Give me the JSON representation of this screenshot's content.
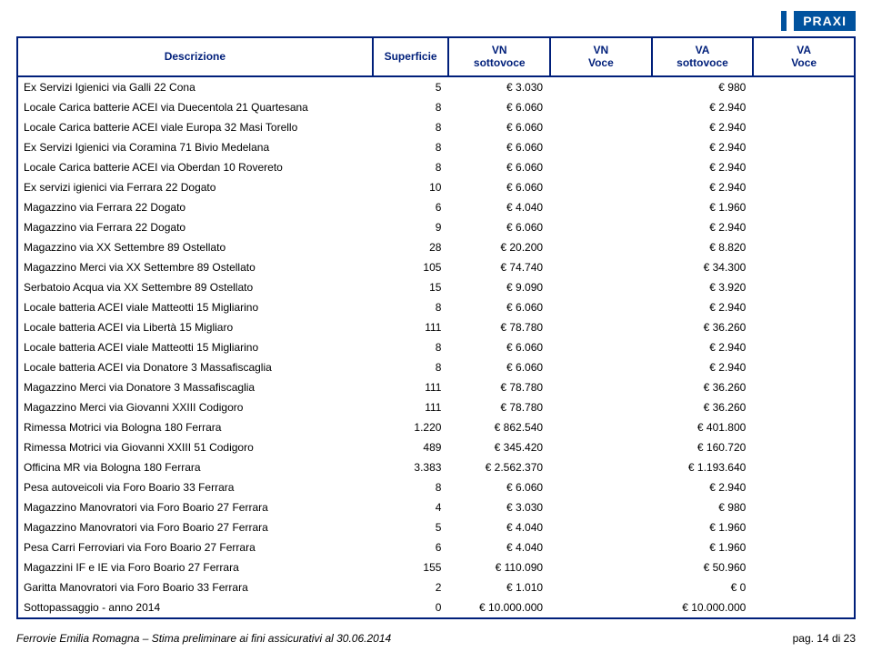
{
  "logo": "PRAXI",
  "headers": {
    "desc": "Descrizione",
    "sup": "Superficie",
    "vn_sub": "VN\nsottovoce",
    "vn_voce": "VN\nVoce",
    "va_sub": "VA\nsottovoce",
    "va_voce": "VA\nVoce"
  },
  "rows": [
    {
      "d": "Ex Servizi Igienici via Galli 22 Cona",
      "s": "5",
      "vns": "€ 3.030",
      "vnv": "",
      "vas": "€ 980",
      "vav": ""
    },
    {
      "d": "Locale Carica batterie ACEI via Duecentola 21 Quartesana",
      "s": "8",
      "vns": "€ 6.060",
      "vnv": "",
      "vas": "€ 2.940",
      "vav": ""
    },
    {
      "d": "Locale Carica batterie ACEI viale Europa 32 Masi Torello",
      "s": "8",
      "vns": "€ 6.060",
      "vnv": "",
      "vas": "€ 2.940",
      "vav": ""
    },
    {
      "d": "Ex Servizi Igienici via Coramina 71 Bivio Medelana",
      "s": "8",
      "vns": "€ 6.060",
      "vnv": "",
      "vas": "€ 2.940",
      "vav": ""
    },
    {
      "d": "Locale Carica batterie ACEI via Oberdan 10 Rovereto",
      "s": "8",
      "vns": "€ 6.060",
      "vnv": "",
      "vas": "€ 2.940",
      "vav": ""
    },
    {
      "d": "Ex servizi igienici via Ferrara 22 Dogato",
      "s": "10",
      "vns": "€ 6.060",
      "vnv": "",
      "vas": "€ 2.940",
      "vav": ""
    },
    {
      "d": "Magazzino via Ferrara 22 Dogato",
      "s": "6",
      "vns": "€ 4.040",
      "vnv": "",
      "vas": "€ 1.960",
      "vav": ""
    },
    {
      "d": "Magazzino via Ferrara 22 Dogato",
      "s": "9",
      "vns": "€ 6.060",
      "vnv": "",
      "vas": "€ 2.940",
      "vav": ""
    },
    {
      "d": "Magazzino via XX Settembre 89 Ostellato",
      "s": "28",
      "vns": "€ 20.200",
      "vnv": "",
      "vas": "€ 8.820",
      "vav": ""
    },
    {
      "d": "Magazzino Merci via XX Settembre 89 Ostellato",
      "s": "105",
      "vns": "€ 74.740",
      "vnv": "",
      "vas": "€ 34.300",
      "vav": ""
    },
    {
      "d": "Serbatoio Acqua via XX Settembre 89 Ostellato",
      "s": "15",
      "vns": "€ 9.090",
      "vnv": "",
      "vas": "€ 3.920",
      "vav": ""
    },
    {
      "d": "Locale batteria ACEI viale Matteotti 15 Migliarino",
      "s": "8",
      "vns": "€ 6.060",
      "vnv": "",
      "vas": "€ 2.940",
      "vav": ""
    },
    {
      "d": "Locale batteria ACEI via Libertà 15 Migliaro",
      "s": "111",
      "vns": "€ 78.780",
      "vnv": "",
      "vas": "€ 36.260",
      "vav": ""
    },
    {
      "d": "Locale batteria ACEI viale Matteotti 15 Migliarino",
      "s": "8",
      "vns": "€ 6.060",
      "vnv": "",
      "vas": "€ 2.940",
      "vav": ""
    },
    {
      "d": "Locale batteria ACEI via Donatore 3 Massafiscaglia",
      "s": "8",
      "vns": "€ 6.060",
      "vnv": "",
      "vas": "€ 2.940",
      "vav": ""
    },
    {
      "d": "Magazzino Merci via Donatore 3 Massafiscaglia",
      "s": "111",
      "vns": "€ 78.780",
      "vnv": "",
      "vas": "€ 36.260",
      "vav": ""
    },
    {
      "d": "Magazzino Merci via Giovanni XXIII Codigoro",
      "s": "111",
      "vns": "€ 78.780",
      "vnv": "",
      "vas": "€ 36.260",
      "vav": ""
    },
    {
      "d": "Rimessa Motrici via Bologna 180 Ferrara",
      "s": "1.220",
      "vns": "€ 862.540",
      "vnv": "",
      "vas": "€ 401.800",
      "vav": ""
    },
    {
      "d": "Rimessa Motrici via Giovanni XXIII 51 Codigoro",
      "s": "489",
      "vns": "€ 345.420",
      "vnv": "",
      "vas": "€ 160.720",
      "vav": ""
    },
    {
      "d": "Officina MR via Bologna 180 Ferrara",
      "s": "3.383",
      "vns": "€ 2.562.370",
      "vnv": "",
      "vas": "€ 1.193.640",
      "vav": ""
    },
    {
      "d": "Pesa autoveicoli via Foro Boario 33 Ferrara",
      "s": "8",
      "vns": "€ 6.060",
      "vnv": "",
      "vas": "€ 2.940",
      "vav": ""
    },
    {
      "d": "Magazzino Manovratori via Foro Boario 27 Ferrara",
      "s": "4",
      "vns": "€ 3.030",
      "vnv": "",
      "vas": "€ 980",
      "vav": ""
    },
    {
      "d": "Magazzino Manovratori via Foro Boario 27 Ferrara",
      "s": "5",
      "vns": "€ 4.040",
      "vnv": "",
      "vas": "€ 1.960",
      "vav": ""
    },
    {
      "d": "Pesa Carri Ferroviari via Foro Boario 27 Ferrara",
      "s": "6",
      "vns": "€ 4.040",
      "vnv": "",
      "vas": "€ 1.960",
      "vav": ""
    },
    {
      "d": "Magazzini IF e IE via Foro Boario 27 Ferrara",
      "s": "155",
      "vns": "€ 110.090",
      "vnv": "",
      "vas": "€ 50.960",
      "vav": ""
    },
    {
      "d": "Garitta Manovratori via Foro Boario 33 Ferrara",
      "s": "2",
      "vns": "€ 1.010",
      "vnv": "",
      "vas": "€ 0",
      "vav": ""
    },
    {
      "d": "Sottopassaggio - anno 2014",
      "s": "0",
      "vns": "€ 10.000.000",
      "vnv": "",
      "vas": "€ 10.000.000",
      "vav": ""
    }
  ],
  "footer": {
    "left": "Ferrovie Emilia Romagna – Stima preliminare ai fini assicurativi al 30.06.2014",
    "right": "pag. 14 di 23"
  }
}
